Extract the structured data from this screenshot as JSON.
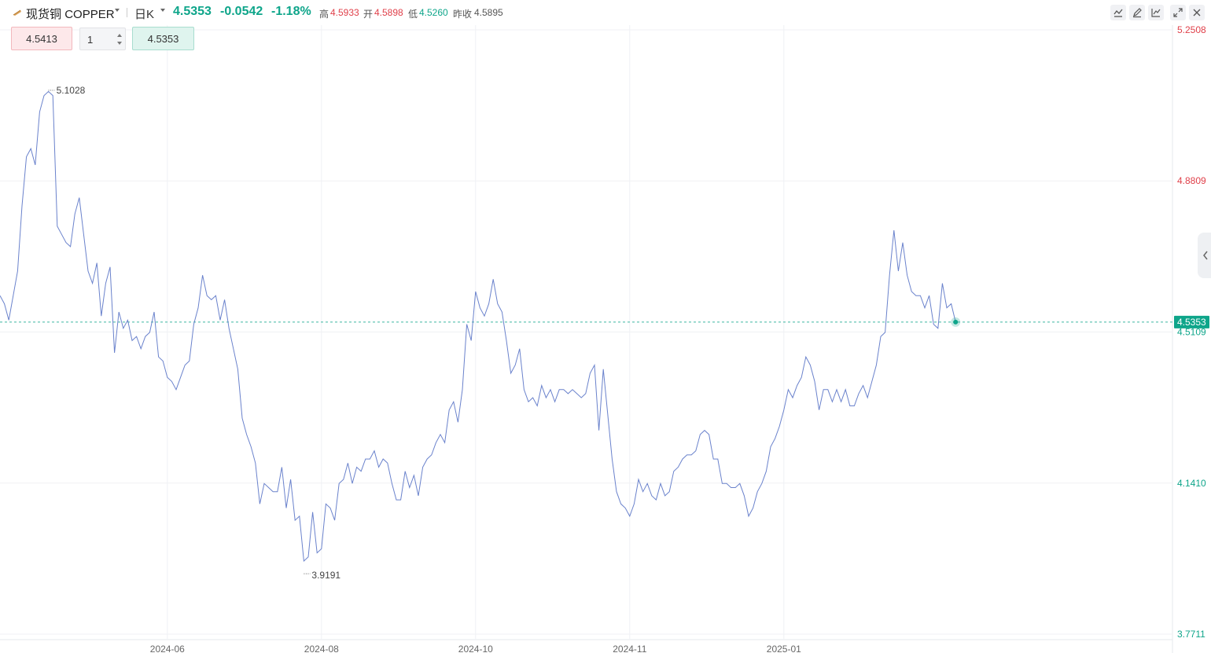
{
  "header": {
    "symbol_name": "现货铜",
    "symbol_code": "COPPER",
    "period": "日K",
    "last_price": "4.5353",
    "change": "-0.0542",
    "change_pct": "-1.18%",
    "high_label": "高",
    "high_value": "4.5933",
    "open_label": "开",
    "open_value": "4.5898",
    "low_label": "低",
    "low_value": "4.5260",
    "prev_close_label": "昨收",
    "prev_close_value": "4.5895",
    "tools": [
      "line-tool-icon",
      "pen-icon",
      "indicator-icon",
      "fullscreen-icon",
      "close-icon"
    ]
  },
  "order_bar": {
    "sell_price": "4.5413",
    "quantity": "1",
    "buy_price": "4.5353"
  },
  "colors": {
    "line": "#6a82cc",
    "up_red": "#e0404a",
    "down_green": "#0ea58a",
    "grid": "#eef0f3"
  },
  "chart_data": {
    "type": "line",
    "y_ticks": [
      {
        "label": "5.2508",
        "value": 5.2508,
        "color": "#e0404a"
      },
      {
        "label": "4.8809",
        "value": 4.8809,
        "color": "#e0404a"
      },
      {
        "label": "4.5109",
        "value": 4.5109,
        "color": "#0ea58a"
      },
      {
        "label": "4.1410",
        "value": 4.141,
        "color": "#0ea58a"
      },
      {
        "label": "3.7711",
        "value": 3.7711,
        "color": "#0ea58a"
      }
    ],
    "x_ticks": [
      {
        "label": "2024-06",
        "index": 38
      },
      {
        "label": "2024-08",
        "index": 73
      },
      {
        "label": "2024-10",
        "index": 108
      },
      {
        "label": "2024-11",
        "index": 143
      },
      {
        "label": "2025-01",
        "index": 178
      }
    ],
    "ylim": [
      3.7711,
      5.2508
    ],
    "current_price": {
      "label": "4.5353",
      "value": 4.5353
    },
    "max_annotation": {
      "label": "5.1028",
      "value": 5.1028
    },
    "min_annotation": {
      "label": "3.9191",
      "value": 3.9191
    },
    "values": [
      4.6,
      4.58,
      4.54,
      4.6,
      4.66,
      4.82,
      4.94,
      4.96,
      4.92,
      5.05,
      5.09,
      5.1,
      5.09,
      4.77,
      4.75,
      4.73,
      4.72,
      4.8,
      4.84,
      4.75,
      4.66,
      4.63,
      4.68,
      4.55,
      4.63,
      4.67,
      4.46,
      4.56,
      4.52,
      4.54,
      4.49,
      4.5,
      4.47,
      4.5,
      4.51,
      4.56,
      4.45,
      4.44,
      4.4,
      4.39,
      4.37,
      4.4,
      4.43,
      4.44,
      4.53,
      4.57,
      4.65,
      4.6,
      4.59,
      4.6,
      4.54,
      4.59,
      4.52,
      4.47,
      4.42,
      4.3,
      4.26,
      4.23,
      4.19,
      4.09,
      4.14,
      4.13,
      4.12,
      4.12,
      4.18,
      4.08,
      4.15,
      4.05,
      4.06,
      3.95,
      3.96,
      4.07,
      3.97,
      3.98,
      4.09,
      4.08,
      4.05,
      4.14,
      4.15,
      4.19,
      4.14,
      4.18,
      4.17,
      4.2,
      4.2,
      4.22,
      4.18,
      4.2,
      4.19,
      4.14,
      4.1,
      4.1,
      4.17,
      4.13,
      4.16,
      4.11,
      4.18,
      4.2,
      4.21,
      4.24,
      4.26,
      4.24,
      4.32,
      4.34,
      4.29,
      4.37,
      4.53,
      4.49,
      4.61,
      4.57,
      4.55,
      4.58,
      4.64,
      4.58,
      4.56,
      4.49,
      4.41,
      4.43,
      4.47,
      4.37,
      4.34,
      4.35,
      4.33,
      4.38,
      4.35,
      4.37,
      4.34,
      4.37,
      4.37,
      4.36,
      4.37,
      4.36,
      4.35,
      4.36,
      4.41,
      4.43,
      4.27,
      4.42,
      4.31,
      4.2,
      4.12,
      4.09,
      4.08,
      4.06,
      4.09,
      4.15,
      4.12,
      4.14,
      4.11,
      4.1,
      4.14,
      4.11,
      4.12,
      4.17,
      4.18,
      4.2,
      4.21,
      4.21,
      4.22,
      4.26,
      4.27,
      4.26,
      4.2,
      4.2,
      4.14,
      4.14,
      4.13,
      4.13,
      4.14,
      4.11,
      4.06,
      4.08,
      4.12,
      4.14,
      4.17,
      4.23,
      4.25,
      4.28,
      4.32,
      4.37,
      4.35,
      4.38,
      4.4,
      4.45,
      4.43,
      4.39,
      4.32,
      4.37,
      4.37,
      4.34,
      4.37,
      4.34,
      4.37,
      4.33,
      4.33,
      4.36,
      4.38,
      4.35,
      4.39,
      4.43,
      4.5,
      4.51,
      4.65,
      4.76,
      4.66,
      4.73,
      4.65,
      4.61,
      4.6,
      4.6,
      4.57,
      4.6,
      4.53,
      4.52,
      4.63,
      4.57,
      4.58,
      4.5353
    ]
  }
}
